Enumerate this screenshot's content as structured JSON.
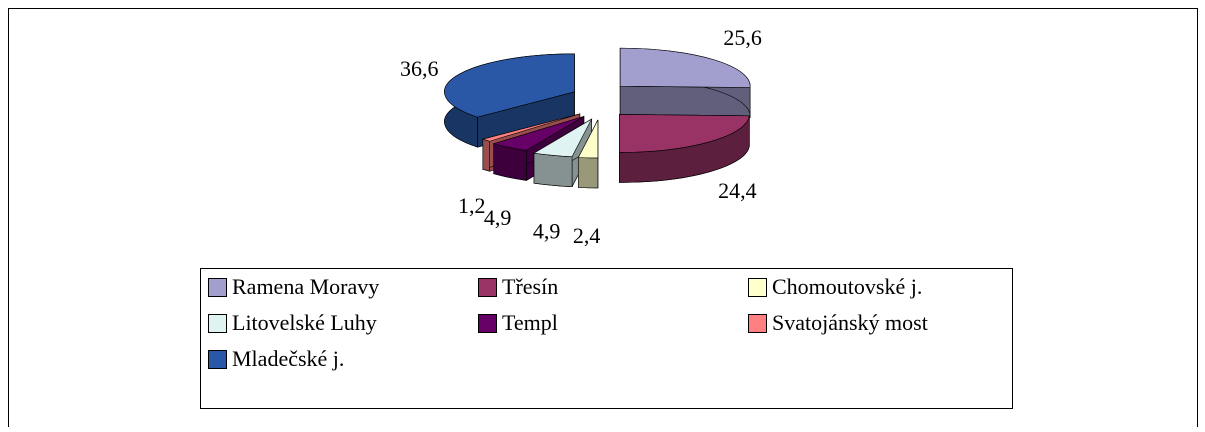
{
  "chart_data": {
    "type": "pie3d",
    "categories": [
      "Ramena Moravy",
      "Třesín",
      "Chomoutovské j.",
      "Litovelské Luhy",
      "Templ",
      "Svatojánský most",
      "Mladečské j."
    ],
    "values": [
      25.6,
      24.4,
      2.4,
      4.9,
      4.9,
      1.2,
      36.6
    ],
    "value_labels": [
      "25,6",
      "24,4",
      "2,4",
      "4,9",
      "4,9",
      "1,2",
      "36,6"
    ],
    "colors": [
      "#a29fcf",
      "#993366",
      "#ffffcc",
      "#dff3f3",
      "#660066",
      "#ff8080",
      "#2a58a6"
    ],
    "legend": "bottom"
  }
}
